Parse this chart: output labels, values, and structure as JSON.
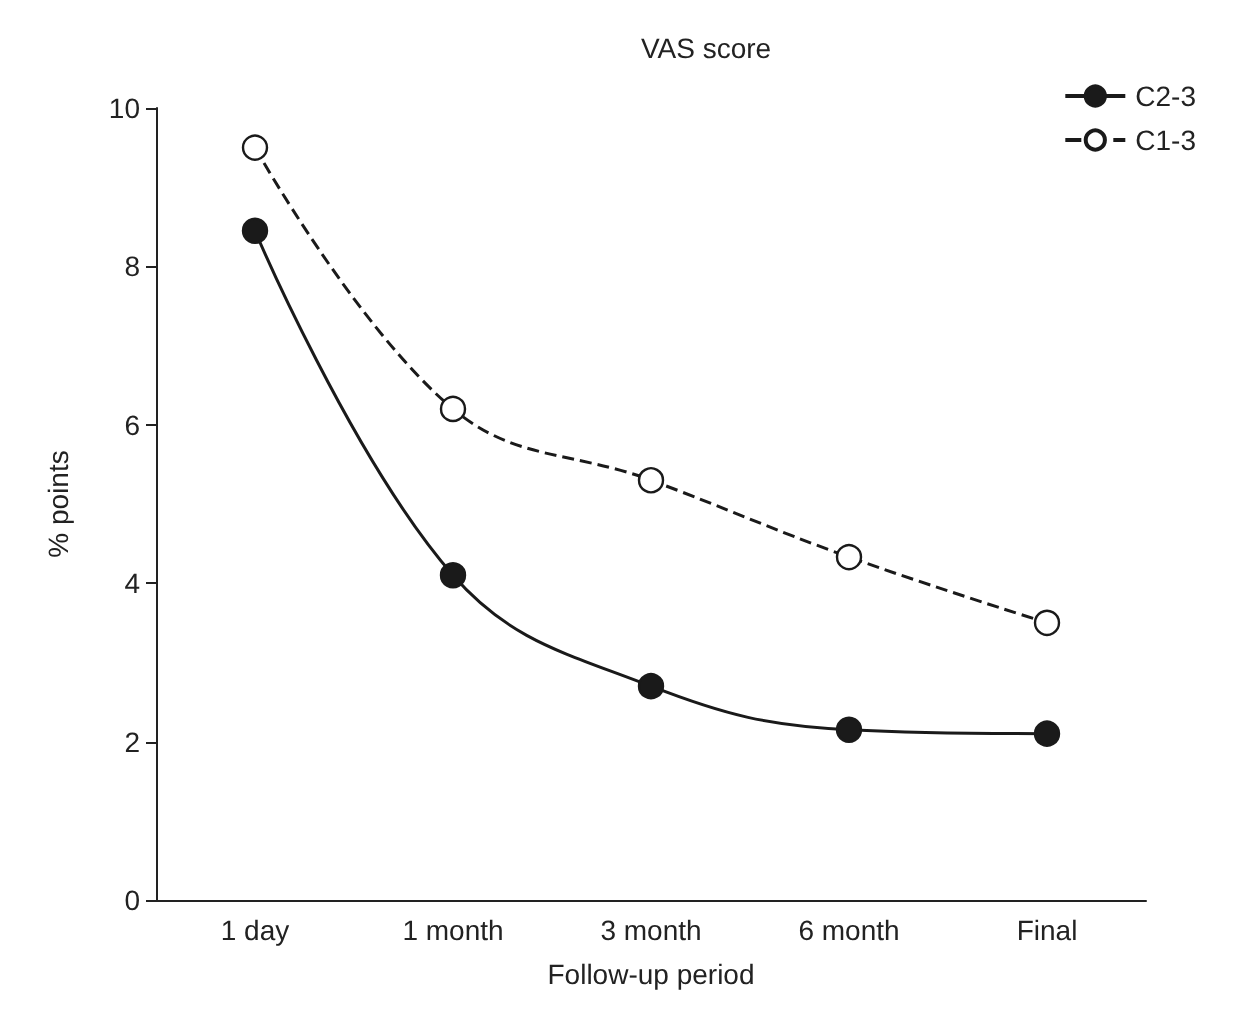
{
  "chart_data": {
    "type": "line",
    "title": "VAS score",
    "xlabel": "Follow-up period",
    "ylabel": "% points",
    "categories": [
      "1 day",
      "1 month",
      "3 month",
      "6 month",
      "Final"
    ],
    "series": [
      {
        "name": "C2-3",
        "color": "#1a1a1a",
        "values": [
          8.45,
          4.1,
          2.7,
          2.15,
          2.1
        ],
        "marker": "circle",
        "line_style": "solid"
      },
      {
        "name": "C1-3",
        "color": "#1a1a1a",
        "values": [
          9.5,
          6.2,
          5.3,
          4.33,
          3.5
        ],
        "marker": "circle",
        "line_style": "dashed"
      }
    ],
    "ylim": [
      0,
      10
    ],
    "yticks": [
      0,
      2,
      4,
      6,
      8,
      10
    ],
    "grid": false,
    "legend": "top right"
  }
}
